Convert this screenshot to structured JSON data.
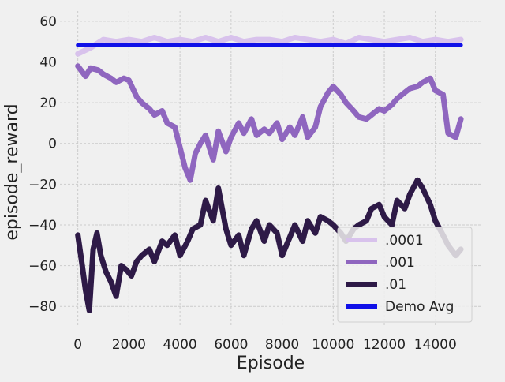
{
  "chart_data": {
    "type": "line",
    "xlabel": "Episode",
    "ylabel": "episode_reward",
    "xlim": [
      -700,
      15800
    ],
    "ylim": [
      -90,
      65
    ],
    "xticks": [
      0,
      2000,
      4000,
      6000,
      8000,
      10000,
      12000,
      14000
    ],
    "yticks": [
      -80,
      -60,
      -40,
      -20,
      0,
      20,
      40,
      60
    ],
    "xtick_labels": [
      "0",
      "2000",
      "4000",
      "6000",
      "8000",
      "10000",
      "12000",
      "14000"
    ],
    "ytick_labels": [
      "−80",
      "−60",
      "−40",
      "−20",
      "0",
      "20",
      "40",
      "60"
    ],
    "grid": true,
    "legend_position": "lower-right",
    "series": [
      {
        "name": ".0001",
        "color": "#d8c2ec",
        "x": [
          0,
          500,
          1000,
          1500,
          2000,
          2500,
          3000,
          3500,
          4000,
          4500,
          5000,
          5500,
          6000,
          6500,
          7000,
          7500,
          8000,
          8500,
          9000,
          9500,
          10000,
          10500,
          11000,
          11500,
          12000,
          12500,
          13000,
          13500,
          14000,
          14500,
          15000
        ],
        "y": [
          44,
          47,
          51,
          50,
          51,
          50,
          52,
          50,
          51,
          50,
          52,
          50,
          52,
          50,
          51,
          51,
          50,
          52,
          51,
          50,
          51,
          49,
          52,
          51,
          50,
          51,
          52,
          50,
          51,
          50,
          51
        ]
      },
      {
        "name": ".001",
        "color": "#8f66bf",
        "x": [
          0,
          300,
          500,
          800,
          1000,
          1300,
          1500,
          1800,
          2000,
          2300,
          2500,
          2800,
          3000,
          3300,
          3500,
          3800,
          4000,
          4200,
          4400,
          4600,
          4800,
          5000,
          5300,
          5500,
          5800,
          6000,
          6300,
          6500,
          6800,
          7000,
          7300,
          7500,
          7800,
          8000,
          8300,
          8500,
          8800,
          9000,
          9300,
          9500,
          9800,
          10000,
          10300,
          10500,
          10800,
          11000,
          11300,
          11500,
          11800,
          12000,
          12300,
          12500,
          12800,
          13000,
          13300,
          13500,
          13800,
          14000,
          14300,
          14500,
          14800,
          15000
        ],
        "y": [
          38,
          33,
          37,
          36,
          34,
          32,
          30,
          32,
          31,
          23,
          20,
          17,
          14,
          16,
          10,
          8,
          -2,
          -12,
          -18,
          -5,
          0,
          4,
          -8,
          6,
          -4,
          3,
          10,
          5,
          12,
          4,
          7,
          5,
          10,
          2,
          8,
          4,
          13,
          3,
          8,
          18,
          25,
          28,
          24,
          20,
          16,
          13,
          12,
          14,
          17,
          16,
          19,
          22,
          25,
          27,
          28,
          30,
          32,
          26,
          24,
          5,
          3,
          12
        ]
      },
      {
        "name": ".01",
        "color": "#2e1a47",
        "x": [
          0,
          150,
          300,
          450,
          600,
          750,
          900,
          1100,
          1300,
          1500,
          1700,
          1900,
          2100,
          2300,
          2500,
          2800,
          3000,
          3300,
          3500,
          3800,
          4000,
          4300,
          4500,
          4800,
          5000,
          5300,
          5500,
          5800,
          6000,
          6300,
          6500,
          6800,
          7000,
          7300,
          7500,
          7800,
          8000,
          8300,
          8500,
          8800,
          9000,
          9300,
          9500,
          9800,
          10000,
          10300,
          10500,
          10800,
          11000,
          11300,
          11500,
          11800,
          12000,
          12300,
          12500,
          12800,
          13000,
          13300,
          13500,
          13800,
          14000,
          14300,
          14500,
          14800,
          15000
        ],
        "y": [
          -45,
          -58,
          -72,
          -82,
          -52,
          -44,
          -55,
          -63,
          -68,
          -75,
          -60,
          -62,
          -65,
          -58,
          -55,
          -52,
          -58,
          -48,
          -50,
          -45,
          -55,
          -48,
          -42,
          -40,
          -28,
          -38,
          -22,
          -42,
          -50,
          -45,
          -55,
          -42,
          -38,
          -48,
          -40,
          -44,
          -55,
          -46,
          -40,
          -48,
          -38,
          -44,
          -36,
          -38,
          -40,
          -44,
          -48,
          -42,
          -40,
          -38,
          -32,
          -30,
          -36,
          -40,
          -28,
          -32,
          -25,
          -18,
          -22,
          -30,
          -38,
          -45,
          -50,
          -55,
          -52
        ]
      },
      {
        "name": "Demo Avg",
        "color": "#1010e8",
        "x": [
          0,
          15000
        ],
        "y": [
          48.3,
          48.3
        ]
      }
    ]
  }
}
